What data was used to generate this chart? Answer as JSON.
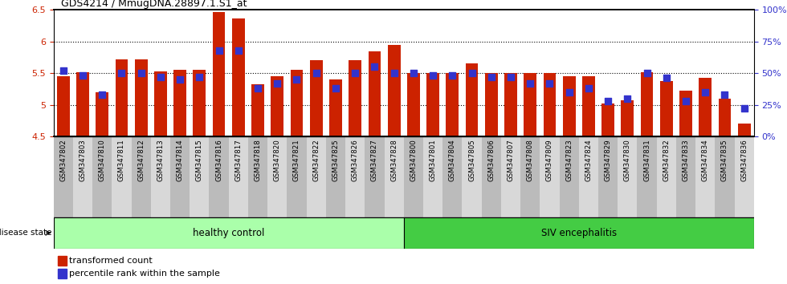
{
  "title": "GDS4214 / MmugDNA.28897.1.S1_at",
  "samples": [
    "GSM347802",
    "GSM347803",
    "GSM347810",
    "GSM347811",
    "GSM347812",
    "GSM347813",
    "GSM347814",
    "GSM347815",
    "GSM347816",
    "GSM347817",
    "GSM347818",
    "GSM347820",
    "GSM347821",
    "GSM347822",
    "GSM347825",
    "GSM347826",
    "GSM347827",
    "GSM347828",
    "GSM347800",
    "GSM347801",
    "GSM347804",
    "GSM347805",
    "GSM347806",
    "GSM347807",
    "GSM347808",
    "GSM347809",
    "GSM347823",
    "GSM347824",
    "GSM347829",
    "GSM347830",
    "GSM347831",
    "GSM347832",
    "GSM347833",
    "GSM347834",
    "GSM347835",
    "GSM347836"
  ],
  "bar_values": [
    5.45,
    5.52,
    5.2,
    5.72,
    5.72,
    5.53,
    5.55,
    5.55,
    6.47,
    6.37,
    5.33,
    5.45,
    5.55,
    5.7,
    5.4,
    5.7,
    5.85,
    5.95,
    5.5,
    5.5,
    5.5,
    5.65,
    5.5,
    5.5,
    5.5,
    5.5,
    5.45,
    5.45,
    5.02,
    5.07,
    5.52,
    5.38,
    5.22,
    5.42,
    5.1,
    4.7
  ],
  "percentile_values": [
    52,
    48,
    33,
    50,
    50,
    47,
    45,
    47,
    68,
    68,
    38,
    42,
    45,
    50,
    38,
    50,
    55,
    50,
    50,
    48,
    48,
    50,
    47,
    47,
    42,
    42,
    35,
    38,
    28,
    30,
    50,
    46,
    28,
    35,
    33,
    22
  ],
  "healthy_count": 18,
  "bar_color": "#cc2200",
  "dot_color": "#3333cc",
  "healthy_color": "#aaffaa",
  "siv_color": "#44cc44",
  "ylim_left": [
    4.5,
    6.5
  ],
  "ylim_right": [
    0,
    100
  ],
  "yticks_left": [
    4.5,
    5.0,
    5.5,
    6.0,
    6.5
  ],
  "yticks_right": [
    0,
    25,
    50,
    75,
    100
  ],
  "yticklabels_left": [
    "4.5",
    "5",
    "5.5",
    "6",
    "6.5"
  ],
  "yticklabels_right": [
    "0%",
    "25%",
    "50%",
    "75%",
    "100%"
  ],
  "bar_width": 0.65,
  "dot_size": 28,
  "legend_label_bar": "transformed count",
  "legend_label_dot": "percentile rank within the sample",
  "disease_state_label": "disease state",
  "healthy_label": "healthy control",
  "siv_label": "SIV encephalitis",
  "bg_even": "#bbbbbb",
  "bg_odd": "#d8d8d8"
}
